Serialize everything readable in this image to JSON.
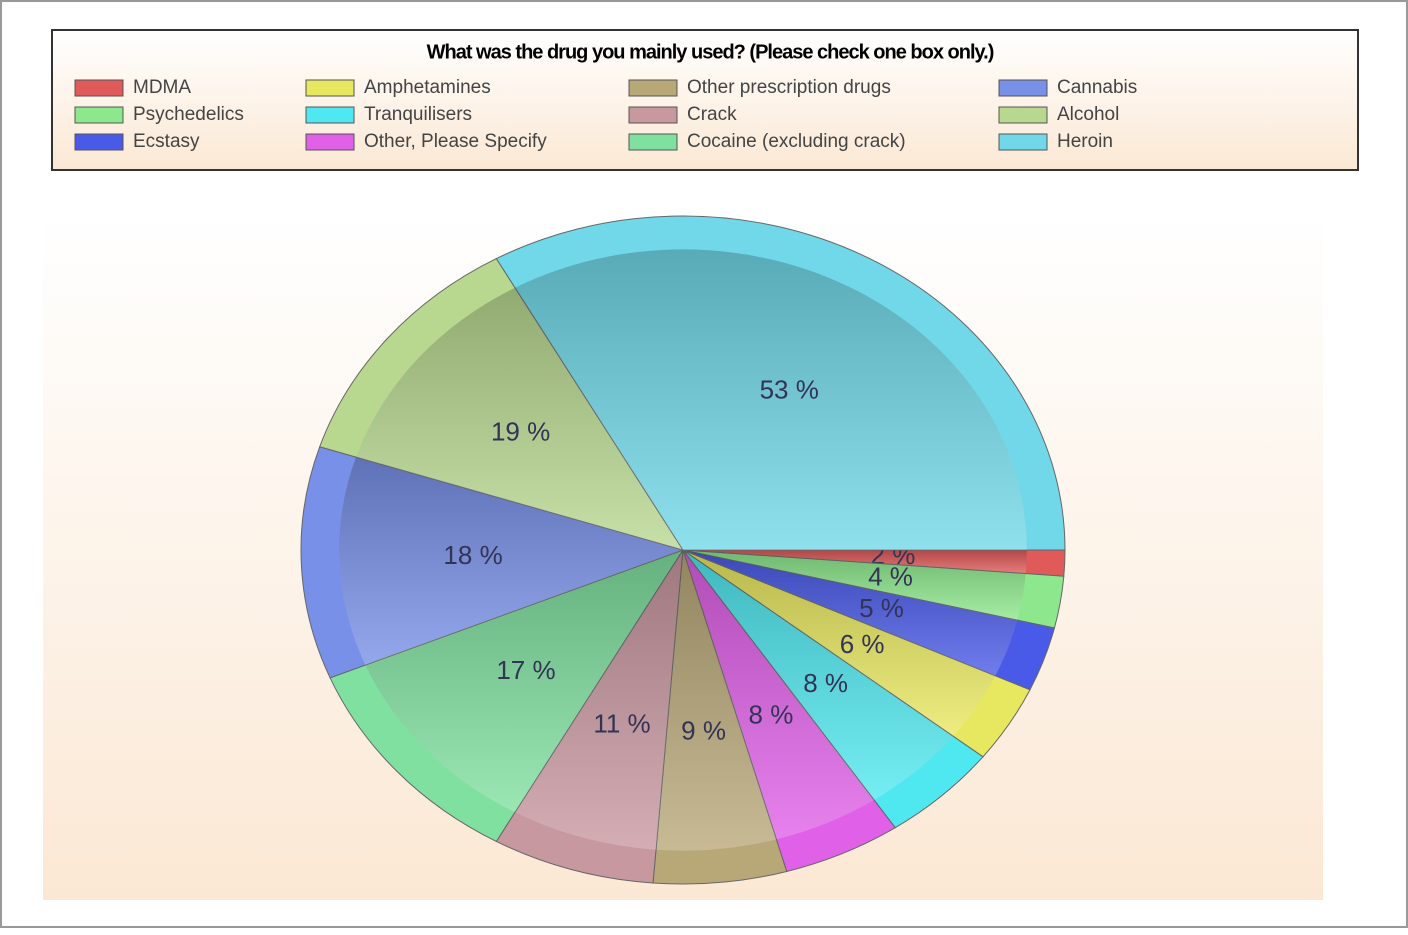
{
  "chart_data": {
    "type": "pie",
    "title": "What was the drug you mainly used? (Please check one box only.)",
    "categories": [
      "MDMA",
      "Psychedelics",
      "Ecstasy",
      "Amphetamines",
      "Tranquilisers",
      "Other, Please Specify",
      "Other prescription drugs",
      "Crack",
      "Cocaine (excluding crack)",
      "Cannabis",
      "Alcohol",
      "Heroin"
    ],
    "values": [
      2,
      4,
      5,
      6,
      8,
      8,
      9,
      11,
      17,
      18,
      19,
      53
    ],
    "value_labels": [
      "2 %",
      "4 %",
      "5 %",
      "6 %",
      "8 %",
      "8 %",
      "9 %",
      "11 %",
      "17 %",
      "18 %",
      "19 %",
      "53 %"
    ],
    "colors": [
      "#e05a5a",
      "#8de88d",
      "#4a5ae8",
      "#e8e860",
      "#50e8f0",
      "#e060e8",
      "#b8a878",
      "#c898a0",
      "#80e0a0",
      "#7890e8",
      "#b8d890",
      "#70d8e8"
    ],
    "legend": "top"
  }
}
